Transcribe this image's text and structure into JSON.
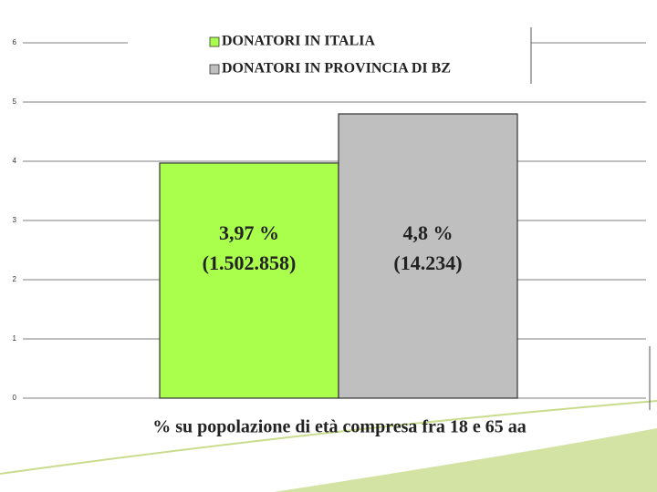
{
  "chart_data": {
    "type": "bar",
    "x_label": "% su popolazione di età compresa fra 18 e 65 aa",
    "categories": [
      null
    ],
    "series": [
      {
        "name": "DONATORI IN ITALIA",
        "color": "#aaff4d",
        "values": [
          3.97
        ],
        "value_labels": [
          "3,97 %"
        ],
        "donors": [
          {
            "value": 1502858,
            "label": "(1.502.858)"
          }
        ]
      },
      {
        "name": "DONATORI IN PROVINCIA DI BZ",
        "color": "#bfbfbf",
        "values": [
          4.8
        ],
        "value_labels": [
          "4,8 %"
        ],
        "donors": [
          {
            "value": 14234,
            "label": "(14.234)"
          }
        ]
      }
    ],
    "ylim": [
      0,
      6
    ],
    "yticks": [
      0,
      1,
      2,
      3,
      4,
      5,
      6
    ],
    "grid": true
  }
}
